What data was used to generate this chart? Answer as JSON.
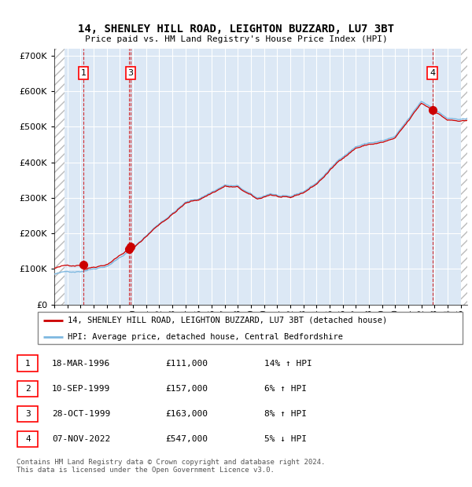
{
  "title": "14, SHENLEY HILL ROAD, LEIGHTON BUZZARD, LU7 3BT",
  "subtitle": "Price paid vs. HM Land Registry's House Price Index (HPI)",
  "ylim": [
    0,
    720000
  ],
  "yticks": [
    0,
    100000,
    200000,
    300000,
    400000,
    500000,
    600000,
    700000
  ],
  "ytick_labels": [
    "£0",
    "£100K",
    "£200K",
    "£300K",
    "£400K",
    "£500K",
    "£600K",
    "£700K"
  ],
  "sale_dates": [
    "1996-03-18",
    "1999-09-10",
    "1999-10-28",
    "2022-11-07"
  ],
  "sale_prices": [
    111000,
    157000,
    163000,
    547000
  ],
  "sale_labels": [
    "1",
    "2",
    "3",
    "4"
  ],
  "sale_label_show": [
    true,
    false,
    true,
    true
  ],
  "hpi_line_color": "#7EB8E0",
  "price_color": "#CC0000",
  "dashed_color": "#CC0000",
  "plot_bg_color": "#DCE8F5",
  "legend_label_price": "14, SHENLEY HILL ROAD, LEIGHTON BUZZARD, LU7 3BT (detached house)",
  "legend_label_hpi": "HPI: Average price, detached house, Central Bedfordshire",
  "table_data": [
    [
      "1",
      "18-MAR-1996",
      "£111,000",
      "14% ↑ HPI"
    ],
    [
      "2",
      "10-SEP-1999",
      "£157,000",
      "6% ↑ HPI"
    ],
    [
      "3",
      "28-OCT-1999",
      "£163,000",
      "8% ↑ HPI"
    ],
    [
      "4",
      "07-NOV-2022",
      "£547,000",
      "5% ↓ HPI"
    ]
  ],
  "footnote": "Contains HM Land Registry data © Crown copyright and database right 2024.\nThis data is licensed under the Open Government Licence v3.0.",
  "xstart": 1994.0,
  "xend": 2025.5
}
